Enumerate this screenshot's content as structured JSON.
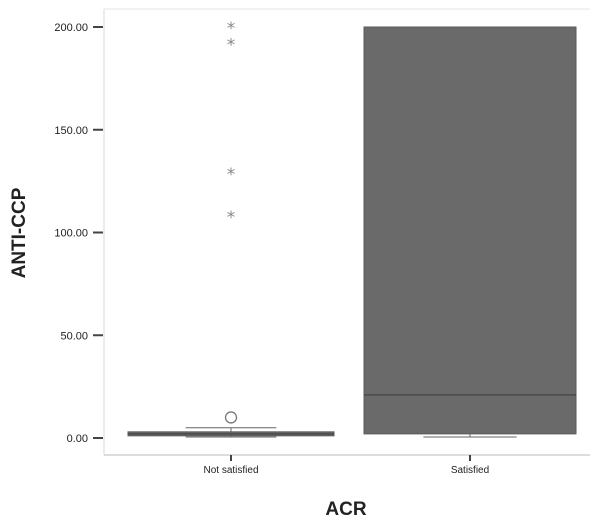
{
  "chart_data": {
    "type": "box",
    "title": "",
    "xlabel": "ACR",
    "ylabel": "ANTI-CCP",
    "ylim": [
      0,
      200
    ],
    "yticks": [
      0,
      50,
      100,
      150,
      200
    ],
    "ytick_labels": [
      "0.00",
      "50.00",
      "100.00",
      "150.00",
      "200.00"
    ],
    "categories": [
      "Not satisfied",
      "Satisfied"
    ],
    "boxes": [
      {
        "category": "Not satisfied",
        "min": 0.5,
        "q1": 1.5,
        "median": 2,
        "q3": 3,
        "max": 5,
        "outliers": [
          10
        ],
        "extremes": [
          108,
          129,
          192,
          200
        ]
      },
      {
        "category": "Satisfied",
        "min": 0.5,
        "q1": 2,
        "median": 21,
        "q3": 200,
        "max": 200,
        "outliers": [],
        "extremes": []
      }
    ],
    "colors": {
      "box": "#6a6a6a",
      "median": "#4a4a4a",
      "axis": "#555555"
    },
    "grid": false
  }
}
